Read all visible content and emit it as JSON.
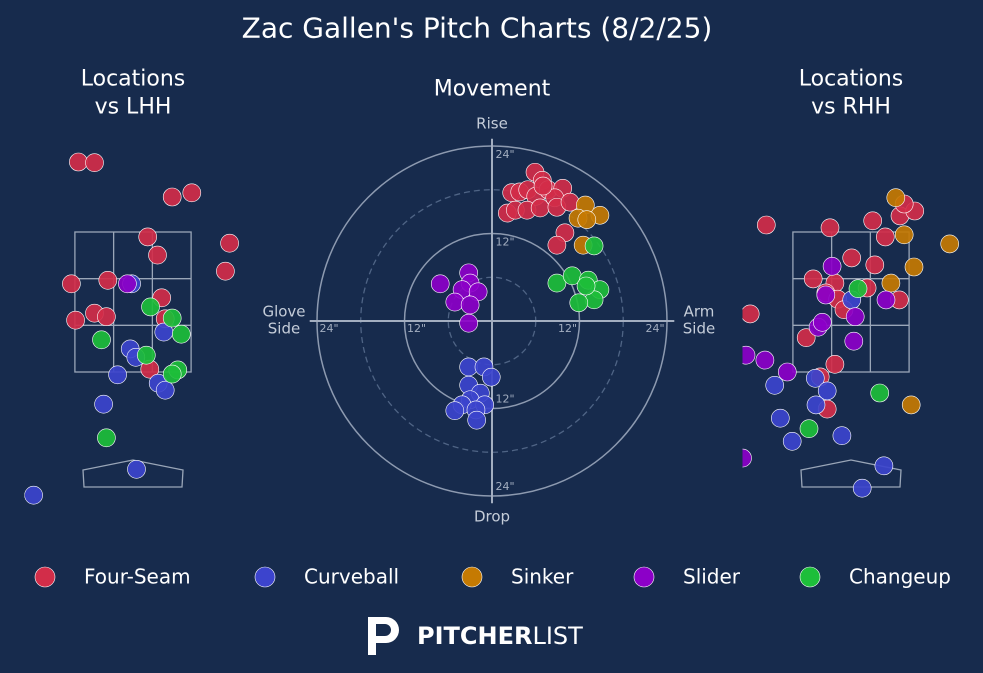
{
  "title": "Zac Gallen's Pitch Charts (8/2/25)",
  "brand": {
    "strong": "PITCHER",
    "light": "LIST"
  },
  "chart_data": [
    {
      "type": "scatter",
      "title": "Locations\nvs LHH",
      "xlim": [
        -1.55,
        1.55
      ],
      "ylim": [
        -0.3,
        5
      ],
      "series": [
        {
          "name": "Four-Seam",
          "color": "#d22d49",
          "x": [
            -0.78,
            -0.55,
            0.56,
            0.84,
            1.38,
            1.32,
            0.21,
            0.35,
            -0.88,
            -0.36,
            -0.82,
            -0.55,
            -0.38,
            0.41,
            0.46,
            0.24
          ],
          "y": [
            4.5,
            4.49,
            4.0,
            4.06,
            3.34,
            2.94,
            3.43,
            3.17,
            2.76,
            2.81,
            2.24,
            2.34,
            2.29,
            2.56,
            2.26,
            1.54
          ]
        },
        {
          "name": "Curveball",
          "color": "#3c44cd",
          "x": [
            -0.02,
            -0.04,
            0.04,
            0.44,
            -0.22,
            0.36,
            0.46,
            -0.42,
            0.05,
            -1.42
          ],
          "y": [
            2.76,
            1.83,
            1.71,
            2.07,
            1.46,
            1.34,
            1.24,
            1.04,
            0.11,
            -0.26
          ]
        },
        {
          "name": "Slider",
          "color": "#8c00c8",
          "x": [
            -0.08
          ],
          "y": [
            2.76
          ]
        },
        {
          "name": "Changeup",
          "color": "#1dbe3a",
          "x": [
            0.25,
            0.56,
            0.69,
            -0.45,
            0.19,
            0.64,
            0.56,
            -0.38
          ],
          "y": [
            2.43,
            2.27,
            2.04,
            1.96,
            1.74,
            1.53,
            1.47,
            0.56
          ]
        }
      ]
    },
    {
      "type": "polar",
      "title": "Movement",
      "ylabel_top": "Rise",
      "ylabel_bottom": "Drop",
      "xlabel_left": "Glove\nSide",
      "xlabel_right": "Arm\nSide",
      "xlim": [
        -25,
        25
      ],
      "ylim": [
        -25,
        25
      ],
      "xticks": [
        {
          "value": -24,
          "label": "24\""
        },
        {
          "value": -12,
          "label": "12\""
        },
        {
          "value": 12,
          "label": "12\""
        },
        {
          "value": 24,
          "label": "24\""
        }
      ],
      "yticks": [
        {
          "value": 24,
          "label": "24\""
        },
        {
          "value": 12,
          "label": "12\""
        },
        {
          "value": -12,
          "label": "12\""
        },
        {
          "value": -24,
          "label": "24\""
        }
      ],
      "series": [
        {
          "name": "Four-Seam",
          "color": "#d22d49",
          "x": [
            5.9,
            6.9,
            2.7,
            3.8,
            4.9,
            6.0,
            7.7,
            9.7,
            8.6,
            2.1,
            3.2,
            4.8,
            6.6,
            8.9,
            10.7,
            10.0,
            8.9,
            7.0
          ],
          "y": [
            20.4,
            19.3,
            17.6,
            17.7,
            18.0,
            17.1,
            18.0,
            18.2,
            16.9,
            14.8,
            15.2,
            15.2,
            15.5,
            15.6,
            16.3,
            12.1,
            10.4,
            18.5
          ]
        },
        {
          "name": "Curveball",
          "color": "#3c44cd",
          "x": [
            -3.2,
            -1.1,
            -0.1,
            -3.2,
            -1.6,
            -3.0,
            -4.1,
            -1.0,
            -5.1,
            -2.2,
            -2.1
          ],
          "y": [
            -6.3,
            -6.3,
            -7.7,
            -8.8,
            -9.9,
            -10.8,
            -11.5,
            -11.5,
            -12.3,
            -12.2,
            -13.6
          ]
        },
        {
          "name": "Sinker",
          "color": "#c57a02",
          "x": [
            12.8,
            11.8,
            14.8,
            13.0,
            12.5
          ],
          "y": [
            15.9,
            14.1,
            14.5,
            13.9,
            10.4
          ]
        },
        {
          "name": "Slider",
          "color": "#8c00c8",
          "x": [
            -7.1,
            -3.2,
            -3.0,
            -4.1,
            -1.9,
            -5.1,
            -3.0,
            -3.2
          ],
          "y": [
            5.1,
            6.6,
            5.2,
            4.3,
            4.0,
            2.6,
            2.2,
            -0.3
          ]
        },
        {
          "name": "Changeup",
          "color": "#1dbe3a",
          "x": [
            14.0,
            8.9,
            11.0,
            13.2,
            14.8,
            14.0,
            11.9,
            12.9
          ],
          "y": [
            10.3,
            5.2,
            6.2,
            5.6,
            4.3,
            2.9,
            2.5,
            4.8
          ]
        }
      ]
    },
    {
      "type": "scatter",
      "title": "Locations\nvs RHH",
      "xlim": [
        -1.55,
        1.55
      ],
      "ylim": [
        -0.3,
        5
      ],
      "series": [
        {
          "name": "Four-Seam",
          "color": "#d22d49",
          "x": [
            -1.21,
            -0.3,
            0.31,
            0.49,
            0.7,
            0.91,
            0.76,
            0.01,
            0.34,
            -0.54,
            -0.23,
            -0.36,
            -0.19,
            -0.1,
            0.23,
            0.69,
            -1.44,
            -0.64,
            -0.23,
            -0.44,
            -0.34
          ],
          "y": [
            3.6,
            3.56,
            3.66,
            3.43,
            3.73,
            3.8,
            3.9,
            3.13,
            3.03,
            2.83,
            2.77,
            2.63,
            2.54,
            2.39,
            2.7,
            2.53,
            2.33,
            1.99,
            1.61,
            1.43,
            0.97
          ]
        },
        {
          "name": "Curveball",
          "color": "#3c44cd",
          "x": [
            0.01,
            -1.09,
            -0.51,
            -0.34,
            -1.01,
            -0.5,
            -0.84,
            -0.13,
            0.47,
            0.16
          ],
          "y": [
            2.53,
            1.31,
            1.41,
            1.23,
            0.84,
            1.03,
            0.51,
            0.59,
            0.16,
            -0.16
          ]
        },
        {
          "name": "Sinker",
          "color": "#c57a02",
          "x": [
            0.64,
            0.76,
            1.41,
            0.9,
            0.57,
            0.86
          ],
          "y": [
            3.99,
            3.46,
            3.33,
            3.0,
            2.77,
            1.03
          ]
        },
        {
          "name": "Slider",
          "color": "#8c00c8",
          "x": [
            -0.27,
            -0.36,
            0.06,
            0.5,
            0.04,
            -0.47,
            -0.41,
            -1.5,
            -1.23,
            -0.91,
            -1.55
          ],
          "y": [
            3.01,
            2.6,
            2.29,
            2.53,
            1.94,
            2.14,
            2.21,
            1.74,
            1.67,
            1.5,
            0.27
          ]
        },
        {
          "name": "Changeup",
          "color": "#1dbe3a",
          "x": [
            0.1,
            0.41,
            -0.6
          ],
          "y": [
            2.69,
            1.2,
            0.69
          ]
        }
      ]
    }
  ]
}
